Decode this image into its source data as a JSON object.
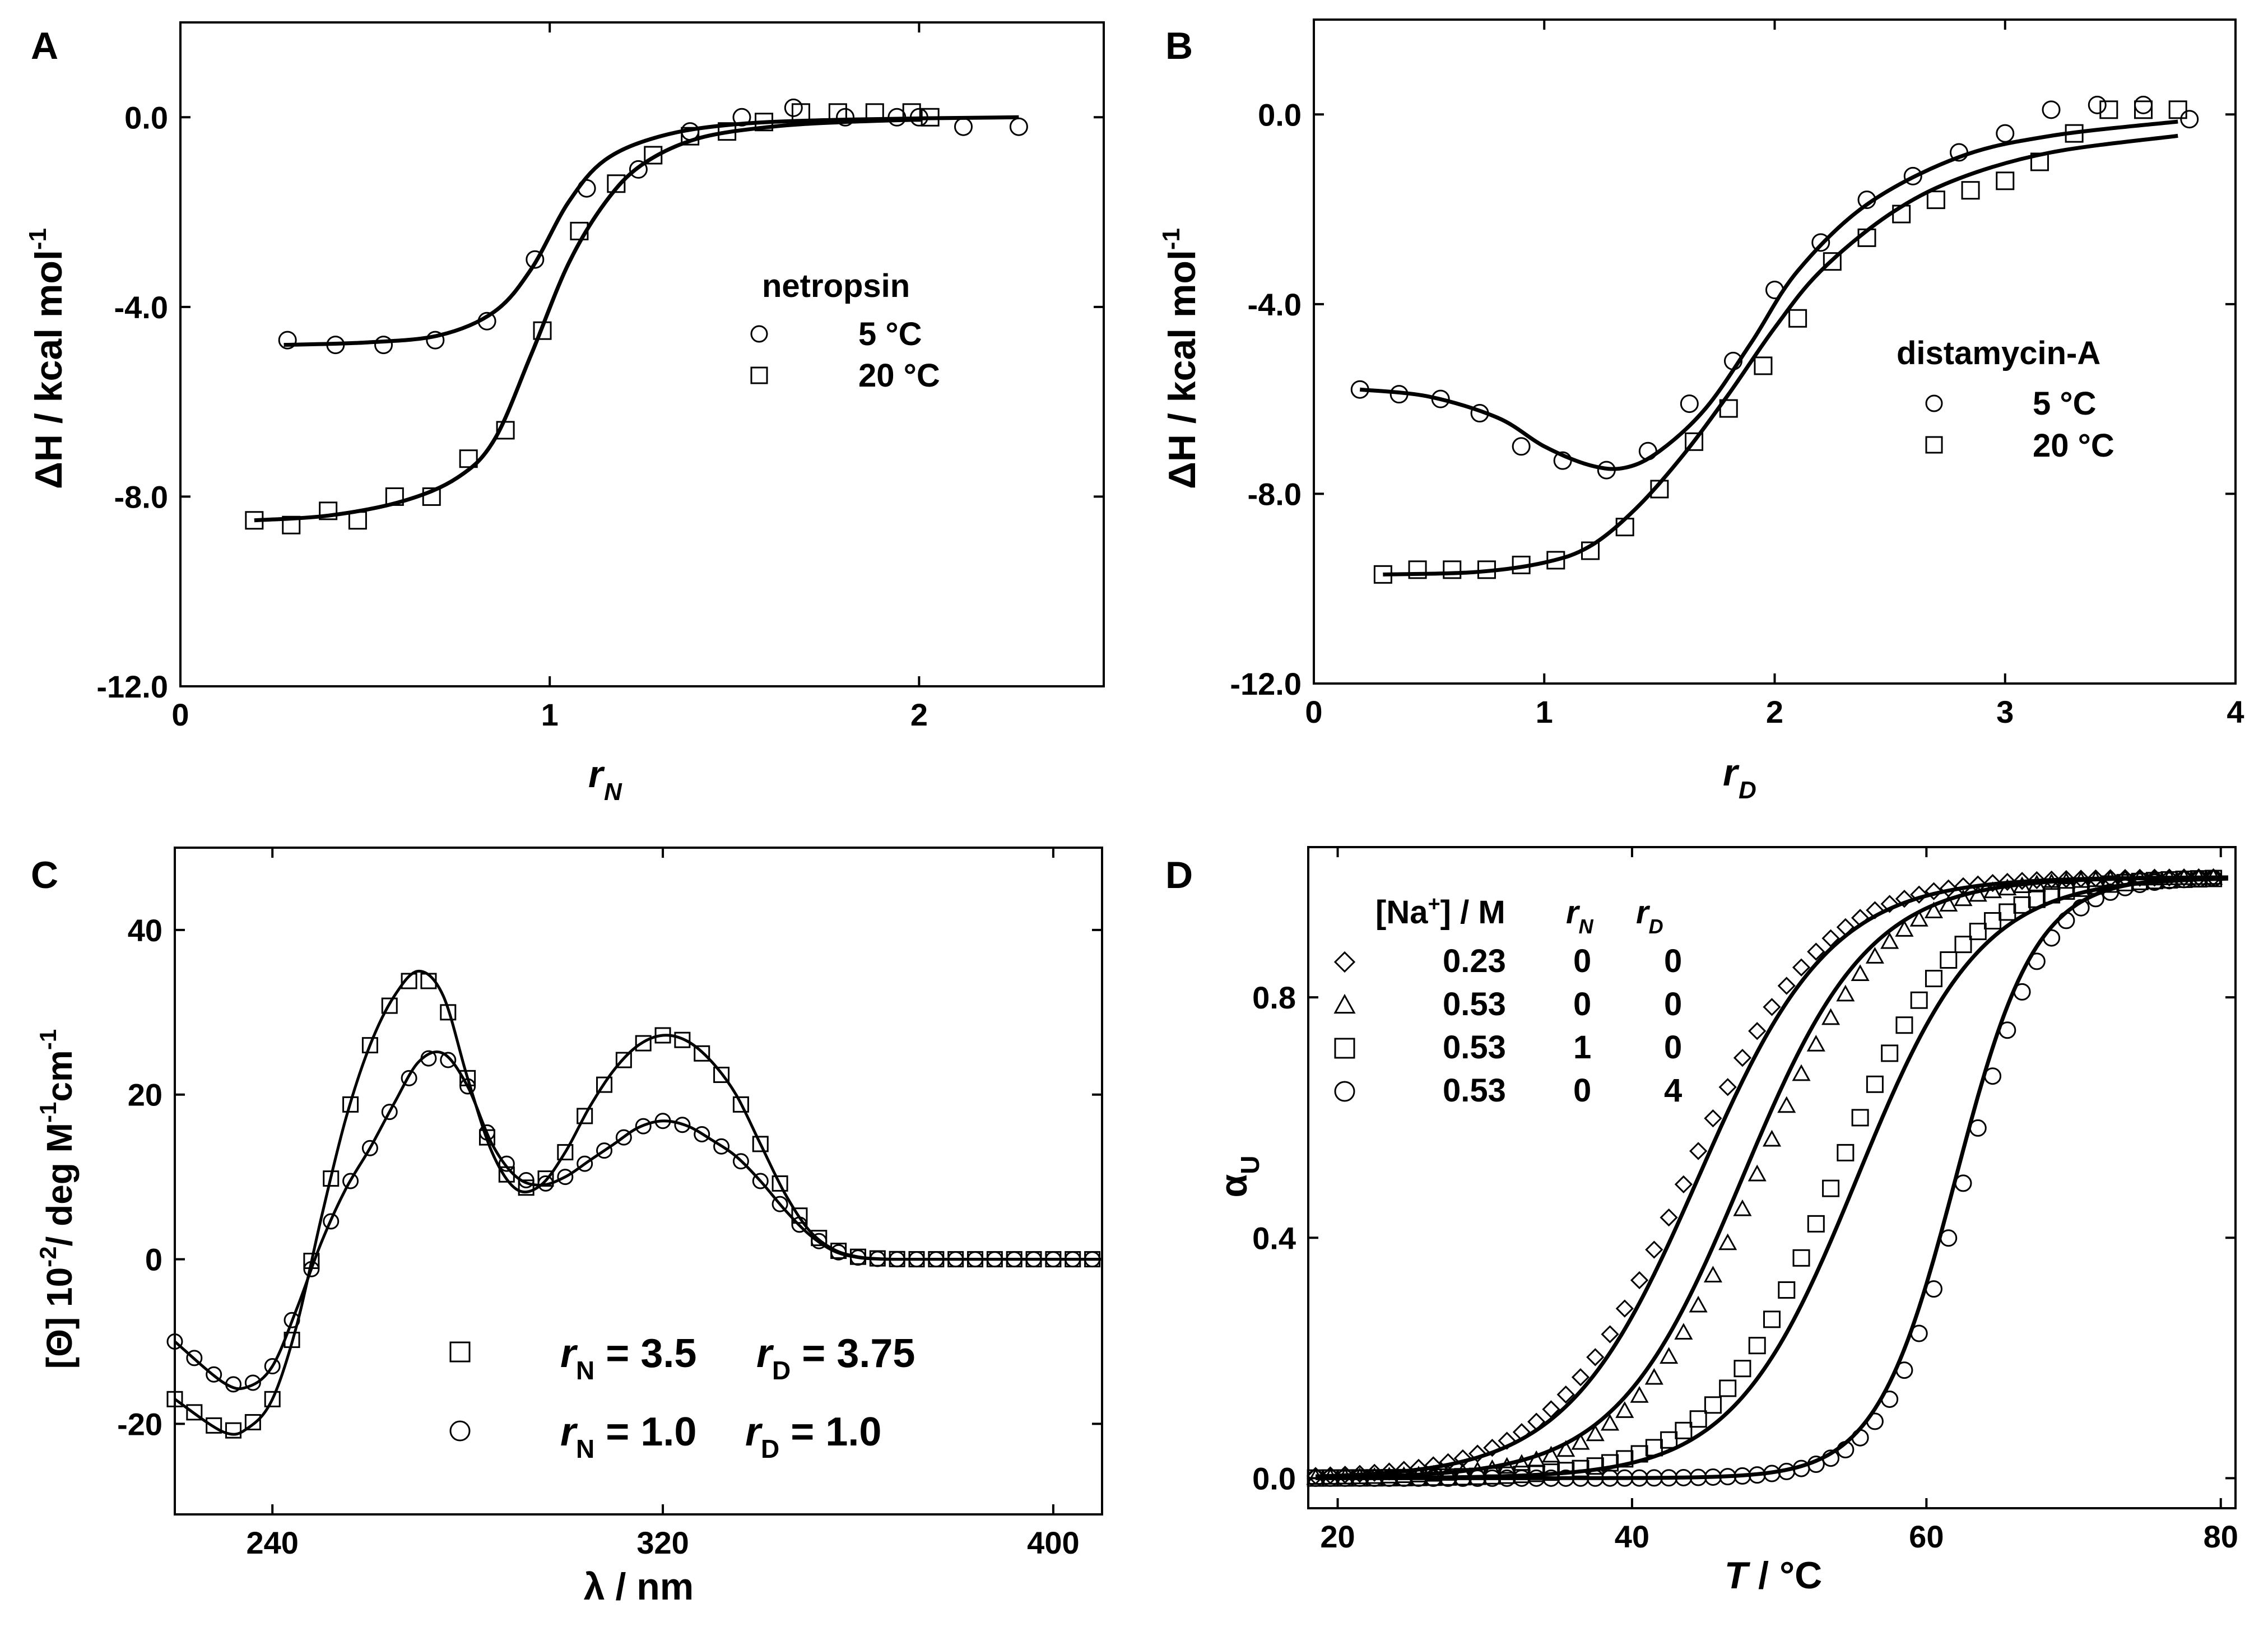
{
  "chart_data": [
    {
      "panel": "A",
      "type": "scatter",
      "xlabel": "r",
      "xlabel_sub": "N",
      "ylabel": "ΔH / kcal mol",
      "ylabel_sup": "-1",
      "xlim": [
        0,
        2.5
      ],
      "ylim": [
        -12,
        2
      ],
      "xticks": [
        "0",
        "1",
        "2"
      ],
      "xtick_values": [
        0,
        1,
        2
      ],
      "yticks": [
        "0.0",
        "-4.0",
        "-8.0",
        "-12.0"
      ],
      "ytick_values": [
        0,
        -4,
        -8,
        -12
      ],
      "legend": {
        "title": "netropsin",
        "entries": [
          "5 °C",
          "20 °C"
        ]
      },
      "series": [
        {
          "name": "5 °C",
          "marker": "circle",
          "x": [
            0.29,
            0.42,
            0.55,
            0.69,
            0.83,
            0.96,
            1.1,
            1.24,
            1.38,
            1.52,
            1.66,
            1.8,
            1.94,
            2.0,
            2.12,
            2.27
          ],
          "y": [
            -4.7,
            -4.8,
            -4.8,
            -4.7,
            -4.3,
            -3.0,
            -1.5,
            -1.1,
            -0.3,
            0.0,
            0.2,
            0.0,
            0.0,
            0.0,
            -0.2,
            -0.2
          ],
          "fit_x": [
            0.28,
            0.5,
            0.7,
            0.85,
            0.95,
            1.05,
            1.15,
            1.3,
            1.5,
            1.8,
            2.27
          ],
          "fit_y": [
            -4.8,
            -4.75,
            -4.6,
            -4.1,
            -3.2,
            -1.8,
            -0.9,
            -0.4,
            -0.15,
            -0.05,
            0.0
          ]
        },
        {
          "name": "20 °C",
          "marker": "square",
          "x": [
            0.2,
            0.3,
            0.4,
            0.48,
            0.58,
            0.68,
            0.78,
            0.88,
            0.98,
            1.08,
            1.18,
            1.28,
            1.38,
            1.48,
            1.58,
            1.68,
            1.78,
            1.88,
            1.98,
            2.03
          ],
          "y": [
            -8.5,
            -8.6,
            -8.3,
            -8.5,
            -8.0,
            -8.0,
            -7.2,
            -6.6,
            -4.5,
            -2.4,
            -1.4,
            -0.8,
            -0.4,
            -0.3,
            -0.1,
            0.1,
            0.1,
            0.1,
            0.1,
            0.0
          ],
          "fit_x": [
            0.2,
            0.4,
            0.6,
            0.75,
            0.85,
            0.95,
            1.05,
            1.15,
            1.25,
            1.4,
            1.6,
            1.8,
            2.0
          ],
          "fit_y": [
            -8.5,
            -8.4,
            -8.1,
            -7.6,
            -6.8,
            -5.0,
            -3.1,
            -1.8,
            -1.0,
            -0.45,
            -0.2,
            -0.1,
            -0.05
          ]
        }
      ]
    },
    {
      "panel": "B",
      "type": "scatter",
      "xlabel": "r",
      "xlabel_sub": "D",
      "ylabel": "ΔH / kcal mol",
      "ylabel_sup": "-1",
      "xlim": [
        0,
        4
      ],
      "ylim": [
        -12,
        2
      ],
      "xticks": [
        "0",
        "1",
        "2",
        "3",
        "4"
      ],
      "xtick_values": [
        0,
        1,
        2,
        3,
        4
      ],
      "yticks": [
        "0.0",
        "-4.0",
        "-8.0",
        "-12.0"
      ],
      "ytick_values": [
        0,
        -4,
        -8,
        -12
      ],
      "legend": {
        "title": "distamycin-A",
        "entries": [
          "5 °C",
          "20 °C"
        ]
      },
      "series": [
        {
          "name": "5 °C",
          "marker": "circle",
          "x": [
            0.2,
            0.37,
            0.55,
            0.72,
            0.9,
            1.08,
            1.27,
            1.45,
            1.63,
            1.82,
            2.0,
            2.2,
            2.4,
            2.6,
            2.8,
            3.0,
            3.2,
            3.4,
            3.6,
            3.8
          ],
          "y": [
            -5.8,
            -5.9,
            -6.0,
            -6.3,
            -7.0,
            -7.3,
            -7.5,
            -7.1,
            -6.1,
            -5.2,
            -3.7,
            -2.7,
            -1.8,
            -1.3,
            -0.8,
            -0.4,
            0.1,
            0.2,
            0.2,
            -0.1
          ],
          "fit_x": [
            0.2,
            0.5,
            0.8,
            1.0,
            1.2,
            1.35,
            1.5,
            1.7,
            1.9,
            2.1,
            2.4,
            2.8,
            3.2,
            3.75
          ],
          "fit_y": [
            -5.8,
            -5.95,
            -6.4,
            -7.0,
            -7.4,
            -7.45,
            -7.1,
            -6.2,
            -4.8,
            -3.3,
            -1.9,
            -0.9,
            -0.45,
            -0.15
          ]
        },
        {
          "name": "20 °C",
          "marker": "square",
          "x": [
            0.3,
            0.45,
            0.6,
            0.75,
            0.9,
            1.05,
            1.2,
            1.35,
            1.5,
            1.65,
            1.8,
            1.95,
            2.1,
            2.25,
            2.4,
            2.55,
            2.7,
            2.85,
            3.0,
            3.15,
            3.3,
            3.45,
            3.6,
            3.75
          ],
          "y": [
            -9.7,
            -9.6,
            -9.6,
            -9.6,
            -9.5,
            -9.4,
            -9.2,
            -8.7,
            -7.9,
            -6.9,
            -6.2,
            -5.3,
            -4.3,
            -3.1,
            -2.6,
            -2.1,
            -1.8,
            -1.6,
            -1.4,
            -1.0,
            -0.4,
            0.1,
            0.1,
            0.1
          ],
          "fit_x": [
            0.3,
            0.7,
            1.0,
            1.2,
            1.4,
            1.6,
            1.8,
            2.0,
            2.2,
            2.5,
            2.8,
            3.2,
            3.75
          ],
          "fit_y": [
            -9.7,
            -9.65,
            -9.45,
            -9.1,
            -8.3,
            -7.2,
            -5.9,
            -4.5,
            -3.3,
            -2.1,
            -1.35,
            -0.8,
            -0.45
          ]
        }
      ]
    },
    {
      "panel": "C",
      "type": "scatter",
      "xlabel": "λ / nm",
      "ylabel": "[Θ] 10",
      "ylabel_mid": "-2",
      "ylabel_rest": "/ deg M",
      "ylabel_sup2": "-1",
      "ylabel_cm": "cm",
      "ylabel_sup3": "-1",
      "xlim": [
        220,
        410
      ],
      "ylim": [
        -31,
        50
      ],
      "xticks": [
        "240",
        "320",
        "400"
      ],
      "xtick_values": [
        240,
        320,
        400
      ],
      "yticks": [
        "40",
        "20",
        "0",
        "-20"
      ],
      "ytick_values": [
        40,
        20,
        0,
        -20
      ],
      "legend": {
        "entries": [
          {
            "marker": "square",
            "a_label": "r",
            "a_sub": "N",
            "a_value": " = 3.5",
            "b_label": "r",
            "b_sub": "D",
            "b_value": " = 3.75"
          },
          {
            "marker": "circle",
            "a_label": "r",
            "a_sub": "N",
            "a_value": " = 1.0",
            "b_label": "r",
            "b_sub": "D",
            "b_value": " = 1.0"
          }
        ]
      },
      "series": [
        {
          "name": "rN = 3.5 rD = 3.75",
          "marker": "square",
          "fit_x": [
            220,
            230,
            235,
            240,
            245,
            250,
            255,
            260,
            265,
            270,
            275,
            280,
            285,
            290,
            295,
            300,
            305,
            310,
            315,
            320,
            325,
            330,
            335,
            340,
            345,
            350,
            355,
            360,
            365,
            370,
            380,
            390,
            400,
            410
          ],
          "fit_y": [
            -17,
            -21,
            -20.5,
            -17,
            -8,
            5,
            17,
            26,
            32,
            35,
            32,
            22,
            13,
            8.5,
            9,
            13,
            18.5,
            23,
            26,
            27.2,
            26.5,
            24,
            20,
            14,
            8,
            3.5,
            1.2,
            0.3,
            0.05,
            0,
            0,
            0,
            0,
            0
          ]
        },
        {
          "name": "rN = 1.0 rD = 1.0",
          "marker": "circle",
          "fit_x": [
            220,
            230,
            235,
            240,
            245,
            250,
            255,
            260,
            265,
            270,
            275,
            280,
            285,
            290,
            295,
            300,
            305,
            310,
            315,
            320,
            325,
            330,
            335,
            340,
            345,
            350,
            355,
            360,
            365,
            370,
            380,
            390,
            400,
            410
          ],
          "fit_y": [
            -10,
            -15,
            -15.5,
            -13,
            -6,
            2,
            8.5,
            13.5,
            19,
            24,
            25,
            21,
            14,
            10,
            9,
            10,
            12,
            14,
            16,
            16.8,
            16.2,
            14.5,
            12.5,
            9.5,
            6,
            3,
            1,
            0.2,
            0,
            0,
            0,
            0,
            0,
            0
          ]
        }
      ]
    },
    {
      "panel": "D",
      "type": "scatter",
      "xlabel": "T / °C",
      "ylabel": "α",
      "ylabel_sub": "U",
      "xlim": [
        18,
        81
      ],
      "ylim": [
        -0.05,
        1.05
      ],
      "xticks": [
        "20",
        "40",
        "60",
        "80"
      ],
      "xtick_values": [
        20,
        40,
        60,
        80
      ],
      "yticks": [
        "0.0",
        "0.4",
        "0.8"
      ],
      "ytick_values": [
        0,
        0.4,
        0.8
      ],
      "legend": {
        "header": {
          "na": "[Na",
          "na_sup": "+",
          "na_rest": "] / M",
          "rn": "r",
          "rn_sub": "N",
          "rd": "r",
          "rd_sub": "D"
        },
        "rows": [
          {
            "marker": "diamond",
            "na": "0.23",
            "rn": "0",
            "rd": "0"
          },
          {
            "marker": "triangle",
            "na": "0.53",
            "rn": "0",
            "rd": "0"
          },
          {
            "marker": "square",
            "na": "0.53",
            "rn": "1",
            "rd": "0"
          },
          {
            "marker": "circle",
            "na": "0.53",
            "rn": "0",
            "rd": "4"
          }
        ]
      },
      "series": [
        {
          "name": "0.23 M, rN 0, rD 0",
          "marker": "diamond",
          "tm": 44.5,
          "width": 4.5
        },
        {
          "name": "0.53 M, rN 0, rD 0",
          "marker": "triangle",
          "tm": 47.5,
          "width": 4.3
        },
        {
          "name": "0.53 M, rN 1, rD 0",
          "marker": "square",
          "tm": 55.3,
          "width": 4.2
        },
        {
          "name": "0.53 M, rN 0, rD 4",
          "marker": "circle",
          "tm": 62.0,
          "width": 2.7
        }
      ]
    }
  ]
}
